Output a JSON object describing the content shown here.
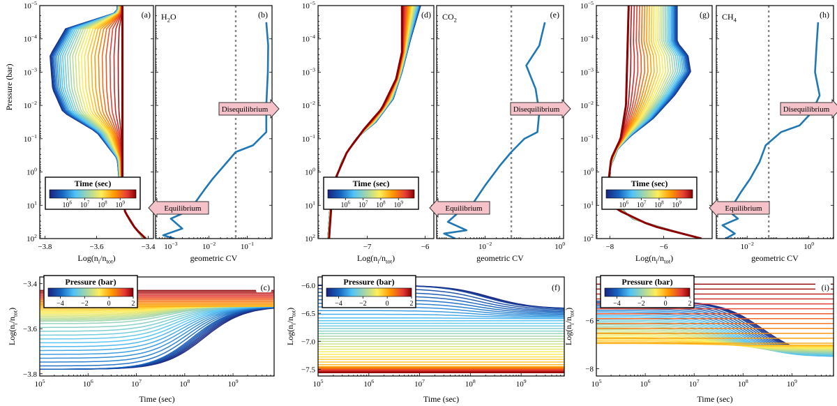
{
  "figure": {
    "colors": {
      "co2_cv_line": "#1f77b4",
      "equilibrium_arrow": "#f4c2c8",
      "reference_line": "#888888"
    },
    "panels": [
      {
        "id": "a",
        "tag": "(a)",
        "type": "profiles",
        "xlabel": "Log(n_i/n_tot)",
        "ylabel": "Pressure (bar)",
        "x_range": [
          -3.82,
          -3.38
        ],
        "xticks": [
          {
            "v": -3.8,
            "label": "−3.8"
          },
          {
            "v": -3.6,
            "label": "−3.6"
          },
          {
            "v": -3.4,
            "label": "−3.4"
          }
        ],
        "ylog_range": [
          -5,
          2
        ],
        "colorbar": {
          "title": "Time (sec)",
          "range": [
            5,
            9.9
          ],
          "labels": [
            "10^6",
            "10^7",
            "10^8",
            "10^9"
          ]
        }
      },
      {
        "id": "b",
        "tag": "(b)",
        "species": "H2O",
        "type": "cv",
        "xlabel": "geometric CV",
        "xlog_range": [
          -3.4,
          -0.35
        ],
        "xticks": [
          "10^-3",
          "10^-2",
          "10^-1"
        ],
        "ref_line": -1.3,
        "arrow_dis": "Disequilibrium",
        "arrow_eq": "Equilibrium"
      },
      {
        "id": "c",
        "tag": "(c)",
        "type": "time",
        "xlabel": "Time (sec)",
        "ylabel": "Log(n_i/n_tot)",
        "y_range": [
          -3.81,
          -3.37
        ],
        "yticks": [
          {
            "v": -3.4,
            "label": "−3.4"
          },
          {
            "v": -3.6,
            "label": "−3.6"
          },
          {
            "v": -3.8,
            "label": "−3.8"
          }
        ],
        "xlog_range": [
          5,
          9.85
        ],
        "xticks": [
          "10^5",
          "10^6",
          "10^7",
          "10^8",
          "10^9"
        ],
        "colorbar": {
          "title": "Pressure (bar)",
          "range": [
            -5,
            2
          ],
          "labels": [
            "−4",
            "−2",
            "0",
            "2"
          ]
        }
      },
      {
        "id": "d",
        "tag": "(d)",
        "type": "profiles",
        "xlabel": "Log(n_i/n_tot)",
        "ylabel": "",
        "x_range": [
          -7.85,
          -5.85
        ],
        "xticks": [
          {
            "v": -7,
            "label": "−7"
          },
          {
            "v": -6,
            "label": "−6"
          }
        ],
        "ylog_range": [
          -5,
          2
        ],
        "colorbar": {
          "title": "Time (sec)",
          "range": [
            5,
            9.9
          ],
          "labels": [
            "10^6",
            "10^7",
            "10^8",
            "10^9"
          ]
        }
      },
      {
        "id": "e",
        "tag": "(e)",
        "species": "CO2",
        "type": "cv",
        "xlabel": "geometric CV",
        "xlog_range": [
          -3.3,
          0.1
        ],
        "xticks": [
          "10^-2",
          "10^0"
        ],
        "ref_line": -1.3,
        "arrow_dis": "Disequilibrium",
        "arrow_eq": "Equilibrium"
      },
      {
        "id": "f",
        "tag": "(f)",
        "type": "time",
        "xlabel": "Time (sec)",
        "ylabel": "Log(n_i/n_tot)",
        "y_range": [
          -7.62,
          -5.85
        ],
        "yticks": [
          {
            "v": -6.0,
            "label": "−6.0"
          },
          {
            "v": -6.5,
            "label": "−6.5"
          },
          {
            "v": -7.0,
            "label": "−7.0"
          },
          {
            "v": -7.5,
            "label": "−7.5"
          }
        ],
        "xlog_range": [
          5,
          9.85
        ],
        "xticks": [
          "10^5",
          "10^6",
          "10^7",
          "10^8",
          "10^9"
        ],
        "colorbar": {
          "title": "Pressure (bar)",
          "range": [
            -5,
            2
          ],
          "labels": [
            "−4",
            "−2",
            "0",
            "2"
          ]
        }
      },
      {
        "id": "g",
        "tag": "(g)",
        "type": "profiles",
        "xlabel": "Log(n_i/n_tot)",
        "ylabel": "",
        "x_range": [
          -8.5,
          -4.2
        ],
        "xticks": [
          {
            "v": -8,
            "label": "−8"
          },
          {
            "v": -6,
            "label": "−6"
          }
        ],
        "ylog_range": [
          -5,
          2
        ],
        "colorbar": {
          "title": "Time (sec)",
          "range": [
            5,
            9.9
          ],
          "labels": [
            "10^6",
            "10^7",
            "10^8",
            "10^9"
          ]
        }
      },
      {
        "id": "h",
        "tag": "(h)",
        "species": "CH4",
        "type": "cv",
        "xlabel": "geometric CV",
        "xlog_range": [
          -3.0,
          0.8
        ],
        "xticks": [
          "10^-2",
          "10^0"
        ],
        "ref_line": -1.3,
        "arrow_dis": "Disequilibrium",
        "arrow_eq": "Equilibrium"
      },
      {
        "id": "i",
        "tag": "(i)",
        "type": "time",
        "xlabel": "Time (sec)",
        "ylabel": "Log(n_i/n_tot)",
        "y_range": [
          -8.3,
          -4.2
        ],
        "yticks": [
          {
            "v": -6,
            "label": "−6"
          },
          {
            "v": -8,
            "label": "−8"
          }
        ],
        "xlog_range": [
          5,
          9.85
        ],
        "xticks": [
          "10^5",
          "10^6",
          "10^7",
          "10^8",
          "10^9"
        ],
        "colorbar": {
          "title": "Pressure (bar)",
          "range": [
            -5,
            2
          ],
          "labels": [
            "−4",
            "−2",
            "0",
            "2"
          ]
        }
      }
    ]
  },
  "chart_data": [
    {
      "panel": "b",
      "type": "line",
      "species": "H2O",
      "title": "H2O",
      "xlabel": "geometric CV",
      "ylabel": "Pressure (bar)",
      "xscale": "log",
      "yscale": "log",
      "series": [
        {
          "name": "geometric CV",
          "points": [
            [
              -0.5,
              -4.5
            ],
            [
              -0.45,
              -3.8
            ],
            [
              -0.46,
              -3
            ],
            [
              -0.5,
              -2
            ],
            [
              -0.5,
              -1.2
            ],
            [
              -0.85,
              -0.8
            ],
            [
              -1.3,
              -0.6
            ],
            [
              -1.6,
              -0.2
            ],
            [
              -1.9,
              0.2
            ],
            [
              -2.1,
              0.5
            ],
            [
              -2.35,
              0.9
            ],
            [
              -2.6,
              1.2
            ],
            [
              -3.0,
              1.4
            ],
            [
              -2.7,
              1.7
            ],
            [
              -3.2,
              1.9
            ],
            [
              -2.9,
              2.0
            ]
          ]
        }
      ],
      "reference_line_x": 0.05
    },
    {
      "panel": "e",
      "type": "line",
      "species": "CO2",
      "title": "CO2",
      "xlabel": "geometric CV",
      "ylabel": "Pressure (bar)",
      "xscale": "log",
      "yscale": "log",
      "series": [
        {
          "name": "geometric CV",
          "points": [
            [
              -0.4,
              -4.5
            ],
            [
              -0.55,
              -3.8
            ],
            [
              -0.9,
              -3.2
            ],
            [
              -0.65,
              -2.5
            ],
            [
              -0.55,
              -1.8
            ],
            [
              -0.6,
              -1.2
            ],
            [
              -0.95,
              -1.0
            ],
            [
              -1.3,
              -0.6
            ],
            [
              -1.6,
              -0.2
            ],
            [
              -2.0,
              0.4
            ],
            [
              -2.3,
              0.9
            ],
            [
              -2.7,
              1.2
            ],
            [
              -3.0,
              1.5
            ],
            [
              -2.5,
              1.75
            ],
            [
              -3.1,
              1.85
            ],
            [
              -2.8,
              2.0
            ]
          ]
        }
      ],
      "reference_line_x": 0.05
    },
    {
      "panel": "h",
      "type": "line",
      "species": "CH4",
      "title": "CH4",
      "xlabel": "geometric CV",
      "ylabel": "Pressure (bar)",
      "xscale": "log",
      "yscale": "log",
      "series": [
        {
          "name": "geometric CV",
          "points": [
            [
              0.3,
              -4.5
            ],
            [
              0.25,
              -3.8
            ],
            [
              0.2,
              -3
            ],
            [
              0.35,
              -2.3
            ],
            [
              0.1,
              -1.8
            ],
            [
              -0.3,
              -1.4
            ],
            [
              -0.9,
              -1.2
            ],
            [
              -1.4,
              -0.8
            ],
            [
              -1.6,
              -0.3
            ],
            [
              -1.9,
              0.2
            ],
            [
              -2.2,
              0.6
            ],
            [
              -2.4,
              0.9
            ],
            [
              -2.7,
              1.1
            ],
            [
              -2.3,
              1.4
            ],
            [
              -2.8,
              1.6
            ],
            [
              -2.4,
              1.85
            ],
            [
              -2.7,
              2.0
            ]
          ]
        }
      ],
      "reference_line_x": 0.05
    },
    {
      "panel": "a",
      "type": "line",
      "species": "H2O",
      "title": "",
      "xlabel": "Log(n_i/n_tot)",
      "ylabel": "Pressure (bar)",
      "description": "Vertical mixing-ratio profiles colored by time (1e5 to ~8e9 s)",
      "early_profile": [
        [
          -3.52,
          -4.8
        ],
        [
          -3.72,
          -4.3
        ],
        [
          -3.78,
          -3.5
        ],
        [
          -3.77,
          -2.5
        ],
        [
          -3.73,
          -1.8
        ],
        [
          -3.6,
          -1.2
        ],
        [
          -3.55,
          -0.7
        ],
        [
          -3.52,
          -0.4
        ],
        [
          -3.51,
          0.5
        ],
        [
          -3.5,
          1.0
        ],
        [
          -3.47,
          1.5
        ],
        [
          -3.42,
          2.0
        ]
      ],
      "final_profile": [
        [
          -3.5,
          -5
        ],
        [
          -3.5,
          -0.5
        ],
        [
          -3.5,
          0.5
        ],
        [
          -3.49,
          1.2
        ],
        [
          -3.45,
          1.7
        ],
        [
          -3.41,
          2.0
        ]
      ]
    },
    {
      "panel": "d",
      "type": "line",
      "species": "CO2",
      "title": "",
      "xlabel": "Log(n_i/n_tot)",
      "ylabel": "Pressure (bar)",
      "early_profile": [
        [
          -6.08,
          -5
        ],
        [
          -6.25,
          -4
        ],
        [
          -6.4,
          -3
        ],
        [
          -6.55,
          -2.2
        ],
        [
          -6.85,
          -1.5
        ],
        [
          -7.2,
          -1.0
        ],
        [
          -7.45,
          -0.3
        ],
        [
          -7.58,
          0.5
        ],
        [
          -7.65,
          1.2
        ],
        [
          -7.68,
          2.0
        ]
      ],
      "final_profile": [
        [
          -6.4,
          -5
        ],
        [
          -6.4,
          -3.6
        ],
        [
          -6.5,
          -2.8
        ],
        [
          -6.75,
          -1.9
        ],
        [
          -7.05,
          -1.3
        ],
        [
          -7.35,
          -0.6
        ],
        [
          -7.55,
          0.2
        ],
        [
          -7.62,
          1.0
        ],
        [
          -7.66,
          2.0
        ]
      ]
    },
    {
      "panel": "g",
      "type": "line",
      "species": "CH4",
      "title": "",
      "xlabel": "Log(n_i/n_tot)",
      "ylabel": "Pressure (bar)",
      "early_profile": [
        [
          -5.5,
          -5
        ],
        [
          -5.5,
          -3.9
        ],
        [
          -5.1,
          -3.5
        ],
        [
          -5.0,
          -3.0
        ],
        [
          -5.6,
          -2.3
        ],
        [
          -6.4,
          -1.6
        ],
        [
          -7.2,
          -1.1
        ],
        [
          -7.7,
          -0.7
        ],
        [
          -8.0,
          -0.1
        ],
        [
          -7.9,
          0.8
        ],
        [
          -7.2,
          1.4
        ],
        [
          -5.5,
          1.8
        ],
        [
          -4.6,
          2.0
        ]
      ],
      "final_profile": [
        [
          -7.3,
          -5
        ],
        [
          -7.4,
          -2
        ],
        [
          -7.6,
          -1.0
        ],
        [
          -7.95,
          -0.4
        ],
        [
          -8.05,
          0.3
        ],
        [
          -7.8,
          1.1
        ],
        [
          -6.5,
          1.6
        ],
        [
          -4.6,
          2.0
        ]
      ]
    },
    {
      "panel": "c",
      "type": "line",
      "species": "H2O",
      "xlabel": "Time (sec)",
      "ylabel": "Log(n_i/n_tot)",
      "xscale": "log",
      "description": "Mixing ratio vs time for each pressure level, colored by log pressure (-5 to 2)",
      "levels": [
        {
          "logP": 2.0,
          "start": -3.43,
          "end": -3.43
        },
        {
          "logP": 0.0,
          "start": -3.5,
          "end": -3.5
        },
        {
          "logP": -2.0,
          "start": -3.57,
          "end": -3.5
        },
        {
          "logP": -4.0,
          "start": -3.78,
          "end": -3.5
        }
      ]
    },
    {
      "panel": "f",
      "type": "line",
      "species": "CO2",
      "xlabel": "Time (sec)",
      "ylabel": "Log(n_i/n_tot)",
      "xscale": "log",
      "levels": [
        {
          "logP": 2.0,
          "start": -7.56,
          "end": -7.56
        },
        {
          "logP": 0.0,
          "start": -7.45,
          "end": -7.45
        },
        {
          "logP": -3.0,
          "start": -6.6,
          "end": -6.6
        },
        {
          "logP": -4.5,
          "start": -6.0,
          "end": -6.42
        }
      ]
    },
    {
      "panel": "i",
      "type": "line",
      "species": "CH4",
      "xlabel": "Time (sec)",
      "ylabel": "Log(n_i/n_tot)",
      "xscale": "log",
      "levels": [
        {
          "logP": 2.0,
          "start": -4.5,
          "end": -4.5
        },
        {
          "logP": 0.0,
          "start": -7.0,
          "end": -7.0
        },
        {
          "logP": -3.0,
          "start": -5.8,
          "end": -7.5
        },
        {
          "logP": -4.5,
          "start": -5.2,
          "end": -7.5
        }
      ]
    }
  ]
}
